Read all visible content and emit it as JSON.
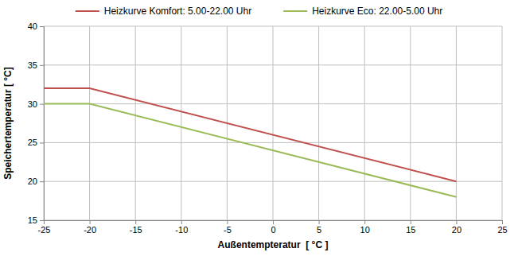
{
  "chart_data": {
    "type": "line",
    "x_label": "Außentempteratur  [ °C ]",
    "y_label": "Speichertemperatur [ °C]",
    "x": [
      -25,
      -20,
      20
    ],
    "series": [
      {
        "name": "Heizkurve Komfort: 5.00-22.00 Uhr",
        "color": "#c0504d",
        "values": [
          32,
          32,
          20
        ]
      },
      {
        "name": "Heizkurve Eco: 22.00-5.00 Uhr",
        "color": "#9bbb59",
        "values": [
          30,
          30,
          18
        ]
      }
    ],
    "xlim": [
      -25,
      25
    ],
    "xticks": [
      -25,
      -20,
      -15,
      -10,
      -5,
      0,
      5,
      10,
      15,
      20,
      25
    ],
    "ylim": [
      15,
      40
    ],
    "yticks": [
      15,
      20,
      25,
      30,
      35,
      40
    ],
    "grid": true,
    "legend": "top"
  }
}
